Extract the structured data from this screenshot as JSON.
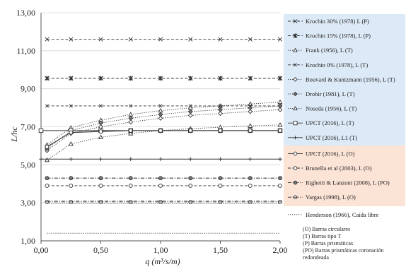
{
  "chart_data": {
    "type": "line",
    "xlabel": "q (m³/s/m)",
    "ylabel": "L/hc",
    "xlim": [
      0,
      2
    ],
    "ylim": [
      1,
      13
    ],
    "x_ticks": [
      "0,00",
      "0,50",
      "1,00",
      "1,50",
      "2,00"
    ],
    "y_ticks": [
      "1,00",
      "3,00",
      "5,00",
      "7,00",
      "9,00",
      "11,00",
      "13,00"
    ],
    "grid": "horizontal",
    "legend_placement": "right",
    "group_colors": {
      "T": "#dce9f6",
      "O": "#fbe3d6"
    },
    "series": [
      {
        "name": "Krochin 30% (1978) L (P)",
        "group": "T",
        "marker": "x-mark",
        "dash": "dash",
        "x": [
          0.05,
          0.25,
          0.5,
          0.75,
          1.0,
          1.25,
          1.5,
          1.75,
          2.0
        ],
        "y": [
          11.6,
          11.6,
          11.6,
          11.6,
          11.6,
          11.6,
          11.6,
          11.6,
          11.6
        ]
      },
      {
        "name": "Krochin 15% (1978), L (P)",
        "group": "T",
        "marker": "asterisk",
        "dash": "dash",
        "x": [
          0.05,
          0.25,
          0.5,
          0.75,
          1.0,
          1.25,
          1.5,
          1.75,
          2.0
        ],
        "y": [
          9.55,
          9.55,
          9.55,
          9.55,
          9.55,
          9.55,
          9.55,
          9.55,
          9.55
        ]
      },
      {
        "name": "Frank (1956), L (T)",
        "group": "T",
        "marker": "triangle",
        "dash": "dot",
        "x": [
          0.05,
          0.25,
          0.5,
          0.75,
          1.0,
          1.25,
          1.5,
          1.75,
          2.0
        ],
        "y": [
          6.05,
          6.95,
          7.35,
          7.65,
          7.85,
          8.0,
          8.1,
          8.2,
          8.3
        ]
      },
      {
        "name": "Krochin 0% (1978), L (T)",
        "group": "T",
        "marker": "x-small",
        "dash": "dash",
        "x": [
          0.05,
          0.25,
          0.5,
          0.75,
          1.0,
          1.25,
          1.5,
          1.75,
          2.0
        ],
        "y": [
          8.1,
          8.1,
          8.1,
          8.1,
          8.1,
          8.1,
          8.1,
          8.1,
          8.1
        ]
      },
      {
        "name": "Bouvard & Kuntzmann (1956), L (T)",
        "group": "T",
        "marker": "diamond-open",
        "dash": "dot",
        "x": [
          0.05,
          0.25,
          0.5,
          0.75,
          1.0,
          1.25,
          1.5,
          1.75,
          2.0
        ],
        "y": [
          5.75,
          6.65,
          7.0,
          7.25,
          7.45,
          7.6,
          7.7,
          7.8,
          7.9
        ]
      },
      {
        "name": "Drobir (1981), L (T)",
        "group": "T",
        "marker": "diamond-filled",
        "dash": "dot",
        "x": [
          0.05,
          0.25,
          0.5,
          0.75,
          1.0,
          1.25,
          1.5,
          1.75,
          2.0
        ],
        "y": [
          5.85,
          6.8,
          7.2,
          7.45,
          7.65,
          7.8,
          7.9,
          8.0,
          8.1
        ]
      },
      {
        "name": "Noseda (1956), L (T)",
        "group": "T",
        "marker": "triangle",
        "dash": "dot",
        "x": [
          0.05,
          0.25,
          0.5,
          0.75,
          1.0,
          1.25,
          1.5,
          1.75,
          2.0
        ],
        "y": [
          5.25,
          6.1,
          6.45,
          6.65,
          6.8,
          6.9,
          6.98,
          7.05,
          7.1
        ]
      },
      {
        "name": "UPCT (2016), L (T)",
        "group": "T",
        "marker": "square",
        "dash": "solid",
        "x": [
          0.0,
          0.25,
          0.5,
          0.75,
          1.0,
          1.25,
          1.5,
          1.75,
          2.0
        ],
        "y": [
          6.8,
          6.8,
          6.8,
          6.8,
          6.8,
          6.8,
          6.8,
          6.8,
          6.8
        ]
      },
      {
        "name": "UPCT (2016), L1 (T)",
        "group": "T",
        "marker": "cross",
        "dash": "solid",
        "x": [
          0.0,
          0.25,
          0.5,
          0.75,
          1.0,
          1.25,
          1.5,
          1.75,
          2.0
        ],
        "y": [
          5.3,
          5.3,
          5.3,
          5.3,
          5.3,
          5.3,
          5.3,
          5.3,
          5.3
        ]
      },
      {
        "name": "UPCT (2016), L (O)",
        "group": "O",
        "marker": "circle-open",
        "dash": "solid",
        "x": [
          0.05,
          0.25,
          0.5,
          0.75,
          1.0,
          1.25,
          1.5,
          1.75,
          2.0
        ],
        "y": [
          5.95,
          6.7,
          6.75,
          6.8,
          6.8,
          6.8,
          6.8,
          6.8,
          6.8
        ]
      },
      {
        "name": "Brunella et al (2003), L (O)",
        "group": "O",
        "marker": "circle-open",
        "dash": "dash",
        "x": [
          0.05,
          0.25,
          0.5,
          0.75,
          1.0,
          1.25,
          1.5,
          1.75,
          2.0
        ],
        "y": [
          3.9,
          3.9,
          3.9,
          3.9,
          3.9,
          3.9,
          3.9,
          3.9,
          3.9
        ]
      },
      {
        "name": "Righetti & Lanzoni (2008), L (PO)",
        "group": "O",
        "marker": "circle-filled",
        "dash": "dashdot",
        "x": [
          0.05,
          0.25,
          0.5,
          0.75,
          1.0,
          1.25,
          1.5,
          1.75,
          2.0
        ],
        "y": [
          4.3,
          4.3,
          4.3,
          4.3,
          4.3,
          4.3,
          4.3,
          4.3,
          4.3
        ]
      },
      {
        "name": "Vargas (1998), L (O)",
        "group": "O",
        "marker": "circle-dash",
        "dash": "dashdot",
        "x": [
          0.05,
          0.25,
          0.5,
          0.75,
          1.0,
          1.25,
          1.5,
          1.75,
          2.0
        ],
        "y": [
          3.05,
          3.05,
          3.05,
          3.05,
          3.05,
          3.05,
          3.05,
          3.05,
          3.05
        ]
      },
      {
        "name": "Henderson (1966), Caída libre",
        "group": "none",
        "marker": "none",
        "dash": "dot",
        "x": [
          0.05,
          2.0
        ],
        "y": [
          1.4,
          1.4
        ]
      }
    ],
    "extra_lines": [
      {
        "dash": "dashdot",
        "y": 3.1
      },
      {
        "dash": "dot",
        "y": 2.95
      },
      {
        "dash": "dashdot",
        "y": 4.3
      }
    ],
    "notes": [
      "(O)   Barras circulares",
      "(T)   Barras tipo T",
      "(P)   Barras prismáticas",
      "(PO) Barras prismáticas coronación",
      "redondeada"
    ]
  }
}
